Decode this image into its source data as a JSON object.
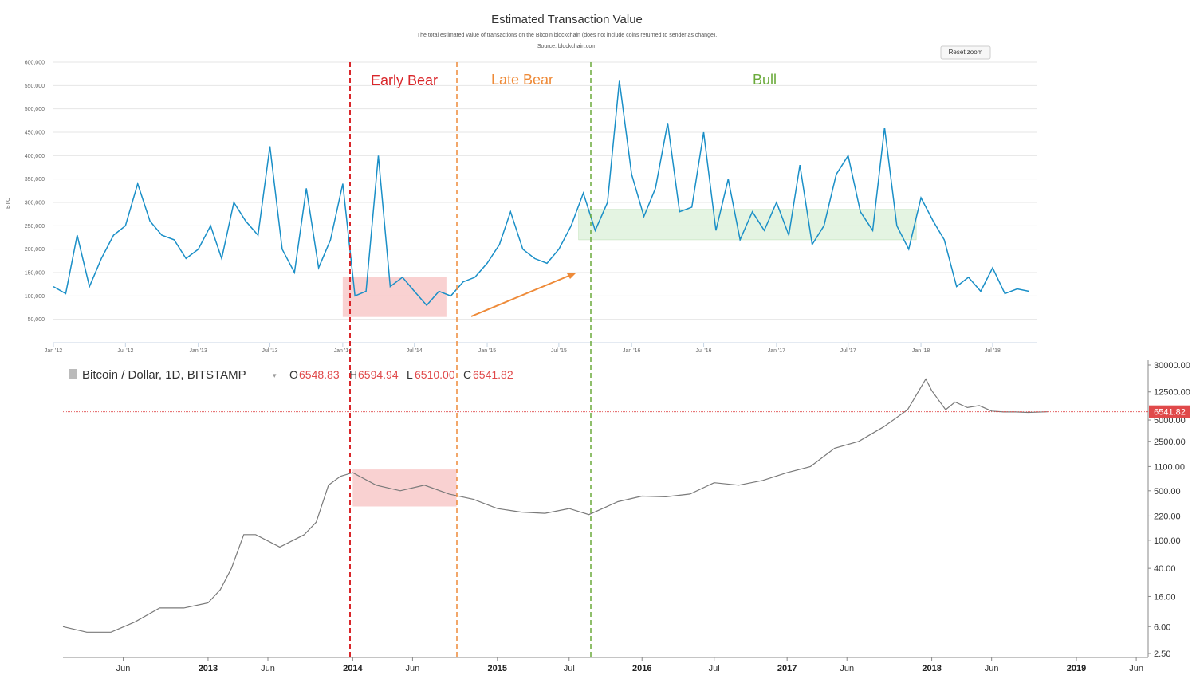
{
  "top_chart": {
    "title": "Estimated Transaction Value",
    "subtitle": "The total estimated value of transactions on the Bitcoin blockchain (does not include coins returned to sender as change).",
    "source": "Source: blockchain.com",
    "reset_zoom_label": "Reset zoom",
    "ylabel": "BTC",
    "line_color": "#1a8fc7"
  },
  "bottom_chart": {
    "symbol_title": "Bitcoin / Dollar, 1D, BITSTAMP",
    "ohlc": {
      "o_label": "O",
      "o_value": "6548.83",
      "h_label": "H",
      "h_value": "6594.94",
      "l_label": "L",
      "l_value": "6510.00",
      "c_label": "C",
      "c_value": "6541.82"
    },
    "last_price_tag": "6541.82"
  },
  "regions": {
    "early_bear": {
      "label": "Early Bear",
      "color": "#d9262a"
    },
    "late_bear": {
      "label": "Late Bear",
      "color": "#ee8a38"
    },
    "bull": {
      "label": "Bull",
      "color": "#6aaa3a"
    }
  },
  "chart_data": [
    {
      "type": "line",
      "title": "Estimated Transaction Value",
      "ylabel": "BTC",
      "ylim": [
        0,
        600000
      ],
      "y_ticks": [
        50000,
        100000,
        150000,
        200000,
        250000,
        300000,
        350000,
        400000,
        450000,
        500000,
        550000,
        600000
      ],
      "y_tick_labels": [
        "50,000",
        "100,000",
        "150,000",
        "200,000",
        "250,000",
        "300,000",
        "350,000",
        "400,000",
        "450,000",
        "500,000",
        "550,000",
        "600,000"
      ],
      "x_ticks": [
        "2012-01-01",
        "2012-07-01",
        "2013-01-01",
        "2013-07-01",
        "2014-01-01",
        "2014-07-01",
        "2015-01-01",
        "2015-07-01",
        "2016-01-01",
        "2016-07-01",
        "2017-01-01",
        "2017-07-01",
        "2018-01-01",
        "2018-07-01"
      ],
      "x_tick_labels": [
        "Jan '12",
        "Jul '12",
        "Jan '13",
        "Jul '13",
        "Jan '14",
        "Jul '14",
        "Jan '15",
        "Jul '15",
        "Jan '16",
        "Jul '16",
        "Jan '17",
        "Jul '17",
        "Jan '18",
        "Jul '18"
      ],
      "xlim": [
        "2012-01-01",
        "2018-10-20"
      ],
      "grid": true,
      "series": [
        {
          "x": [
            "2012-01-01",
            "2012-02-01",
            "2012-03-01",
            "2012-04-01",
            "2012-05-01",
            "2012-06-01",
            "2012-07-01",
            "2012-08-01",
            "2012-09-01",
            "2012-10-01",
            "2012-11-01",
            "2012-12-01",
            "2013-01-01",
            "2013-02-01",
            "2013-03-01",
            "2013-04-01",
            "2013-05-01",
            "2013-06-01",
            "2013-07-01",
            "2013-08-01",
            "2013-09-01",
            "2013-10-01",
            "2013-11-01",
            "2013-12-01",
            "2014-01-01",
            "2014-02-01",
            "2014-03-01",
            "2014-04-01",
            "2014-05-01",
            "2014-06-01",
            "2014-07-01",
            "2014-08-01",
            "2014-09-01",
            "2014-10-01",
            "2014-11-01",
            "2014-12-01",
            "2015-01-01",
            "2015-02-01",
            "2015-03-01",
            "2015-04-01",
            "2015-05-01",
            "2015-06-01",
            "2015-07-01",
            "2015-08-01",
            "2015-09-01",
            "2015-10-01",
            "2015-11-01",
            "2015-12-01",
            "2016-01-01",
            "2016-02-01",
            "2016-03-01",
            "2016-04-01",
            "2016-05-01",
            "2016-06-01",
            "2016-07-01",
            "2016-08-01",
            "2016-09-01",
            "2016-10-01",
            "2016-11-01",
            "2016-12-01",
            "2017-01-01",
            "2017-02-01",
            "2017-03-01",
            "2017-04-01",
            "2017-05-01",
            "2017-06-01",
            "2017-07-01",
            "2017-08-01",
            "2017-09-01",
            "2017-10-01",
            "2017-11-01",
            "2017-12-01",
            "2018-01-01",
            "2018-02-01",
            "2018-03-01",
            "2018-04-01",
            "2018-05-01",
            "2018-06-01",
            "2018-07-01",
            "2018-08-01",
            "2018-09-01",
            "2018-10-01"
          ],
          "y": [
            120000,
            105000,
            230000,
            120000,
            180000,
            230000,
            250000,
            340000,
            260000,
            230000,
            220000,
            180000,
            200000,
            250000,
            180000,
            300000,
            260000,
            230000,
            420000,
            200000,
            150000,
            330000,
            160000,
            220000,
            340000,
            100000,
            110000,
            400000,
            120000,
            140000,
            110000,
            80000,
            110000,
            100000,
            130000,
            140000,
            170000,
            210000,
            280000,
            200000,
            180000,
            170000,
            200000,
            250000,
            320000,
            240000,
            300000,
            560000,
            360000,
            270000,
            330000,
            470000,
            280000,
            290000,
            450000,
            240000,
            350000,
            220000,
            280000,
            240000,
            300000,
            230000,
            380000,
            210000,
            250000,
            360000,
            400000,
            280000,
            240000,
            460000,
            250000,
            200000,
            310000,
            260000,
            220000,
            120000,
            140000,
            110000,
            160000,
            105000,
            115000,
            110000
          ]
        }
      ],
      "regions": [
        {
          "label": "Early Bear",
          "x": [
            "2014-01-01",
            "2014-09-20"
          ],
          "y": [
            55000,
            140000
          ]
        },
        {
          "label": "Late Bear",
          "x": [
            "2014-09-20",
            "2015-08-20"
          ]
        },
        {
          "label": "Bull",
          "x": [
            "2015-08-20",
            "2017-12-20"
          ],
          "y": [
            220000,
            285000
          ]
        }
      ]
    },
    {
      "type": "line",
      "title": "Bitcoin / Dollar, 1D, BITSTAMP",
      "y_scale": "log",
      "y_ticks": [
        2.5,
        6,
        16,
        40,
        100,
        220,
        500,
        1100,
        2500,
        5000,
        12500,
        30000
      ],
      "y_tick_labels": [
        "2.50",
        "6.00",
        "16.00",
        "40.00",
        "100.00",
        "220.00",
        "500.00",
        "1100.00",
        "2500.00",
        "5000.00",
        "12500.00",
        "30000.00"
      ],
      "x_ticks": [
        "2012-06-01",
        "2013-01-01",
        "2013-06-01",
        "2014-01-01",
        "2014-06-01",
        "2015-01-01",
        "2015-07-01",
        "2016-01-01",
        "2016-07-01",
        "2017-01-01",
        "2017-06-01",
        "2018-01-01",
        "2018-06-01",
        "2019-01-01",
        "2019-06-01"
      ],
      "x_tick_labels": [
        "Jun",
        "2013",
        "Jun",
        "2014",
        "Jun",
        "2015",
        "Jul",
        "2016",
        "Jul",
        "2017",
        "Jun",
        "2018",
        "Jun",
        "2019",
        "Jun"
      ],
      "xlim": [
        "2012-01-01",
        "2019-07-01"
      ],
      "grid": false,
      "last_price": 6541.82,
      "series": [
        {
          "x": [
            "2012-01-01",
            "2012-03-01",
            "2012-05-01",
            "2012-07-01",
            "2012-09-01",
            "2012-11-01",
            "2013-01-01",
            "2013-02-01",
            "2013-03-01",
            "2013-04-01",
            "2013-05-01",
            "2013-07-01",
            "2013-09-01",
            "2013-10-01",
            "2013-11-01",
            "2013-12-01",
            "2014-01-01",
            "2014-03-01",
            "2014-05-01",
            "2014-07-01",
            "2014-09-01",
            "2014-11-01",
            "2015-01-01",
            "2015-03-01",
            "2015-05-01",
            "2015-07-01",
            "2015-08-20",
            "2015-11-01",
            "2016-01-01",
            "2016-03-01",
            "2016-05-01",
            "2016-07-01",
            "2016-09-01",
            "2016-11-01",
            "2017-01-01",
            "2017-03-01",
            "2017-05-01",
            "2017-07-01",
            "2017-09-01",
            "2017-11-01",
            "2017-12-17",
            "2018-01-01",
            "2018-02-05",
            "2018-03-01",
            "2018-04-01",
            "2018-05-01",
            "2018-06-01",
            "2018-07-01",
            "2018-08-01",
            "2018-09-01",
            "2018-10-20"
          ],
          "y": [
            6,
            5,
            5,
            7,
            11,
            11,
            13,
            20,
            40,
            120,
            120,
            80,
            120,
            180,
            600,
            800,
            900,
            600,
            500,
            600,
            450,
            380,
            280,
            250,
            240,
            280,
            230,
            350,
            420,
            410,
            450,
            650,
            600,
            700,
            900,
            1100,
            2000,
            2500,
            4000,
            7000,
            19000,
            13000,
            7000,
            9000,
            7500,
            8000,
            6700,
            6500,
            6500,
            6400,
            6541.82
          ]
        }
      ],
      "regions": [
        {
          "label": "Early Bear",
          "x": [
            "2014-01-01",
            "2014-09-20"
          ],
          "y": [
            300,
            1000
          ]
        }
      ]
    }
  ]
}
